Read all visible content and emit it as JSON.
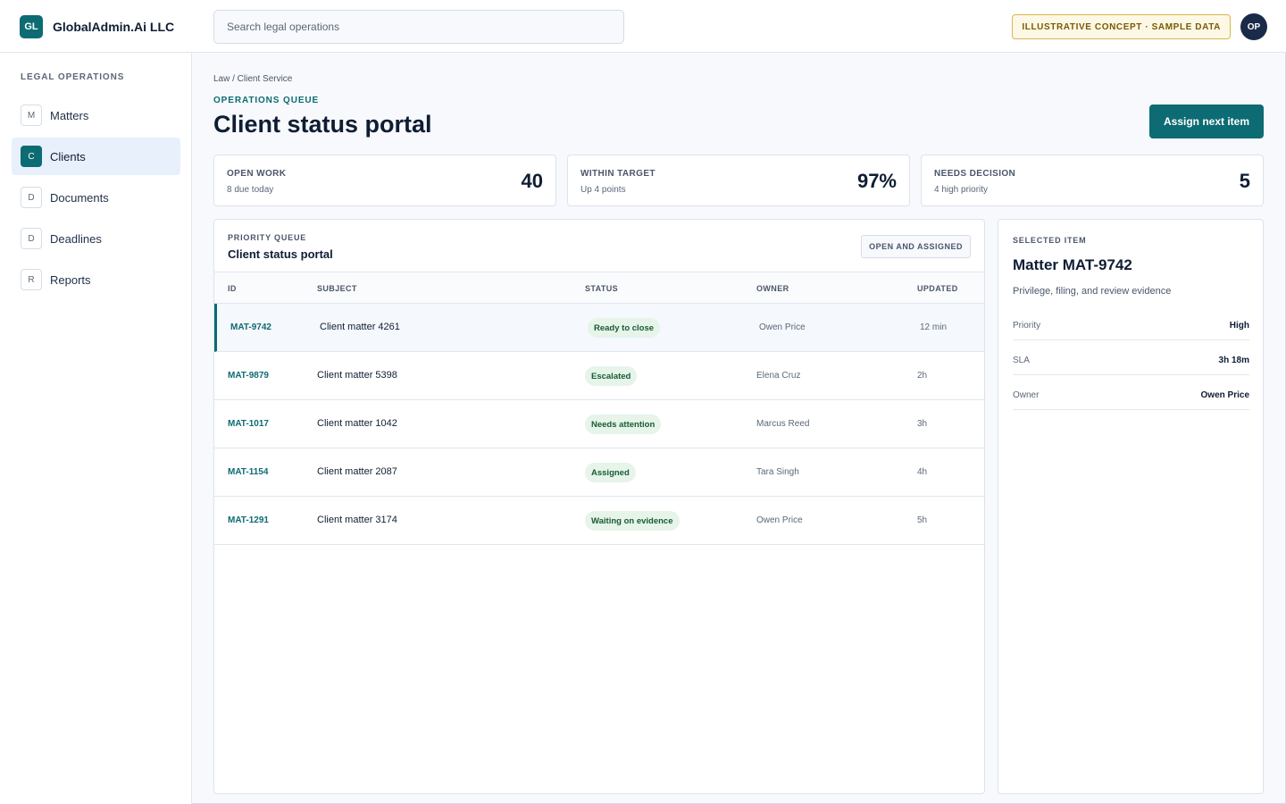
{
  "app": {
    "logo_text": "GL",
    "name": "GlobalAdmin.Ai LLC",
    "search_placeholder": "Search legal operations",
    "concept_badge": "ILLUSTRATIVE CONCEPT · SAMPLE DATA",
    "avatar_initials": "OP"
  },
  "sidebar": {
    "title": "LEGAL OPERATIONS",
    "items": [
      {
        "letter": "M",
        "label": "Matters",
        "active": false
      },
      {
        "letter": "C",
        "label": "Clients",
        "active": true
      },
      {
        "letter": "D",
        "label": "Documents",
        "active": false
      },
      {
        "letter": "D",
        "label": "Deadlines",
        "active": false
      },
      {
        "letter": "R",
        "label": "Reports",
        "active": false
      }
    ]
  },
  "header": {
    "breadcrumb": "Law / Client Service",
    "eyebrow": "OPERATIONS QUEUE",
    "title": "Client status portal",
    "primary_action": "Assign next item"
  },
  "stats": [
    {
      "label": "OPEN WORK",
      "sub": "8 due today",
      "value": "40"
    },
    {
      "label": "WITHIN TARGET",
      "sub": "Up 4 points",
      "value": "97%"
    },
    {
      "label": "NEEDS DECISION",
      "sub": "4 high priority",
      "value": "5"
    }
  ],
  "queue": {
    "eyebrow": "PRIORITY QUEUE",
    "title": "Client status portal",
    "filter_label": "OPEN AND ASSIGNED",
    "columns": [
      "ID",
      "SUBJECT",
      "STATUS",
      "OWNER",
      "UPDATED"
    ],
    "rows": [
      {
        "id": "MAT-9742",
        "subject": "Client matter 4261",
        "status": "Ready to close",
        "owner": "Owen Price",
        "updated": "12 min",
        "selected": true
      },
      {
        "id": "MAT-9879",
        "subject": "Client matter 5398",
        "status": "Escalated",
        "owner": "Elena Cruz",
        "updated": "2h",
        "selected": false
      },
      {
        "id": "MAT-1017",
        "subject": "Client matter 1042",
        "status": "Needs attention",
        "owner": "Marcus Reed",
        "updated": "3h",
        "selected": false
      },
      {
        "id": "MAT-1154",
        "subject": "Client matter 2087",
        "status": "Assigned",
        "owner": "Tara Singh",
        "updated": "4h",
        "selected": false
      },
      {
        "id": "MAT-1291",
        "subject": "Client matter 3174",
        "status": "Waiting on evidence",
        "owner": "Owen Price",
        "updated": "5h",
        "selected": false
      }
    ]
  },
  "detail": {
    "eyebrow": "SELECTED ITEM",
    "title": "Matter MAT-9742",
    "description": "Privilege, filing, and review evidence",
    "fields": [
      {
        "key": "Priority",
        "value": "High"
      },
      {
        "key": "SLA",
        "value": "3h 18m"
      },
      {
        "key": "Owner",
        "value": "Owen Price"
      }
    ]
  },
  "colors": {
    "accent": "#0d6b73",
    "text_dark": "#0f1d33",
    "status_pill_bg": "#e6f4ea",
    "status_pill_text": "#185a34",
    "badge_border": "#d9b64c"
  }
}
